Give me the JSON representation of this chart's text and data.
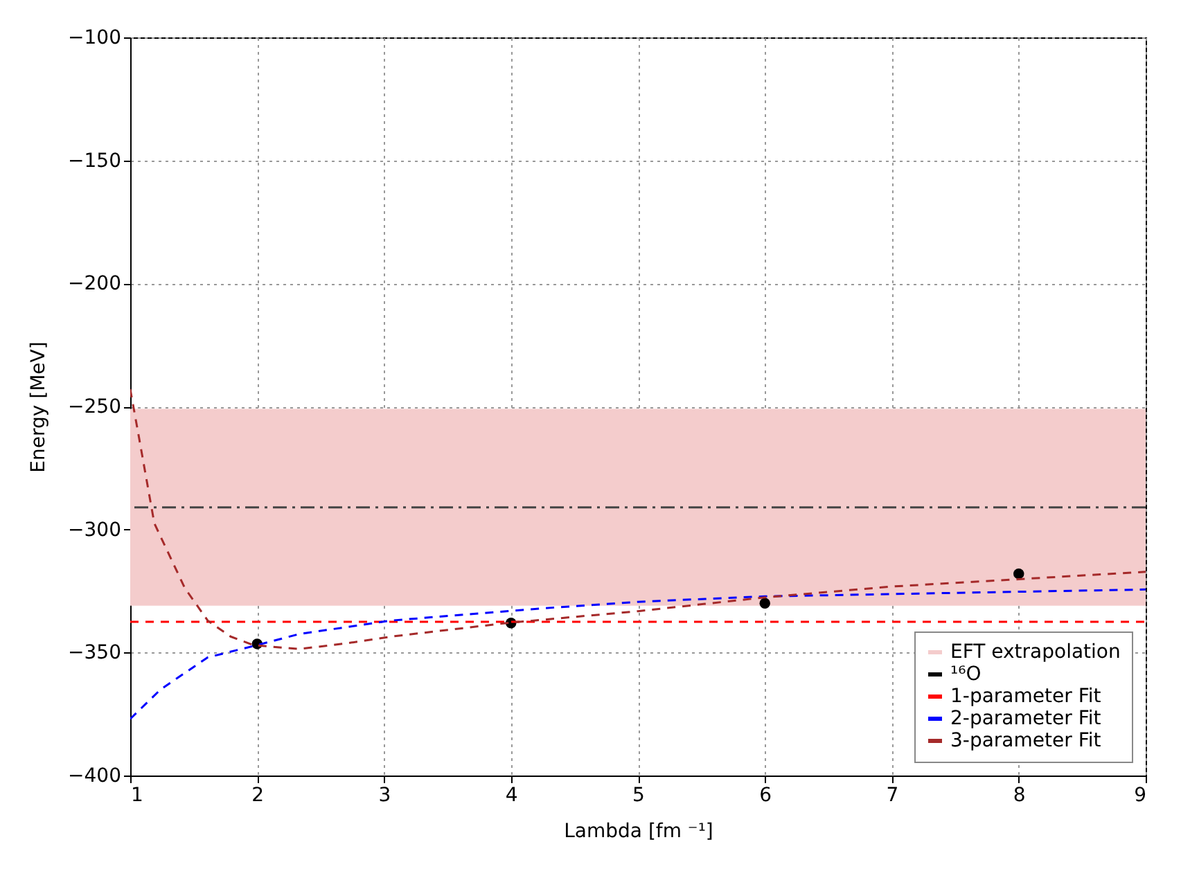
{
  "chart_data": {
    "type": "scatter",
    "xlabel": "Lambda [fm ⁻¹]",
    "ylabel": "Energy [MeV]",
    "xlim": [
      1,
      9
    ],
    "xticks": [
      1,
      2,
      3,
      4,
      5,
      6,
      7,
      8,
      9
    ],
    "ylim": [
      -400,
      -100
    ],
    "yticks": [
      -400,
      -350,
      -300,
      -250,
      -200,
      -150,
      -100
    ],
    "grid": true,
    "legend": "bottom right",
    "bands": [
      {
        "axis": "y",
        "from": -331,
        "to": -251,
        "label": "EFT extrapolation",
        "color": "#f4cccc"
      }
    ],
    "ref_lines": [
      {
        "axis": "y",
        "value": -291,
        "color": "#444444",
        "line_style": "dashed"
      }
    ],
    "series": [
      {
        "name": "¹⁶O",
        "marker": "circle",
        "color": "#000000",
        "x": [
          2,
          4,
          6,
          8
        ],
        "values": [
          -346.5,
          -338,
          -330,
          -318
        ]
      },
      {
        "name": "1-parameter Fit",
        "type": "line",
        "line_style": "dashed",
        "color": "#ff0000",
        "x": [
          1,
          9
        ],
        "values": [
          -337.5,
          -337.5
        ]
      },
      {
        "name": "2-parameter Fit",
        "type": "line",
        "line_style": "dashed",
        "color": "#0000ff",
        "x": [
          1,
          1.24,
          1.61,
          2,
          2.33,
          3.06,
          4.26,
          5,
          6,
          8,
          9
        ],
        "values": [
          -377,
          -365,
          -352,
          -347,
          -342.5,
          -337,
          -332,
          -329.4,
          -327.2,
          -325.3,
          -324.4
        ]
      },
      {
        "name": "3-parameter Fit",
        "type": "line",
        "line_style": "dashed",
        "color": "#a52a2a",
        "x": [
          1,
          1.06,
          1.19,
          1.43,
          1.61,
          1.79,
          1.97,
          2.33,
          2.7,
          3.06,
          3.97,
          5,
          6,
          7,
          9
        ],
        "values": [
          -243,
          -260,
          -297.5,
          -323.8,
          -337,
          -343.5,
          -347,
          -348.6,
          -346.3,
          -343.5,
          -338,
          -333.2,
          -327.6,
          -323.2,
          -317.2
        ]
      }
    ]
  }
}
